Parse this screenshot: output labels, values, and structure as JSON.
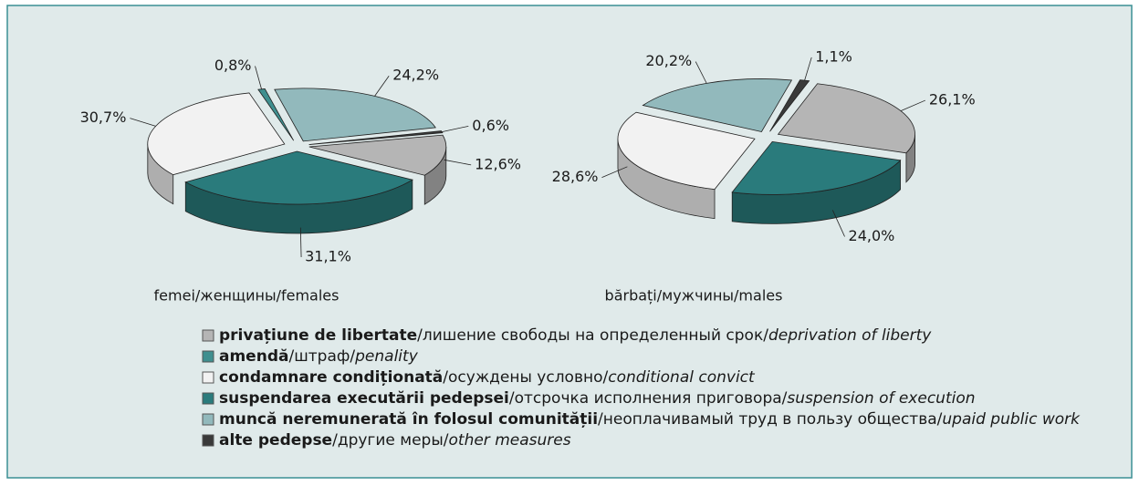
{
  "chart_data": [
    {
      "type": "pie",
      "title": "femei/женщины/females",
      "values": [
        0.8,
        24.2,
        0.6,
        12.6,
        31.1,
        30.7
      ],
      "value_labels": [
        "0,8%",
        "24,2%",
        "0,6%",
        "12,6%",
        "31,1%",
        "30,7%"
      ],
      "colors": [
        "#3f8f8f",
        "#92b9bc",
        "#3a3a3a",
        "#b5b5b5",
        "#2a7b7c",
        "#f2f2f2"
      ]
    },
    {
      "type": "pie",
      "title": "bărbați/мужчины/males",
      "values": [
        20.2,
        1.1,
        26.1,
        24.0,
        28.6
      ],
      "value_labels": [
        "20,2%",
        "1,1%",
        "26,1%",
        "24,0%",
        "28,6%"
      ],
      "colors": [
        "#92b9bc",
        "#3a3a3a",
        "#b5b5b5",
        "#2a7b7c",
        "#f2f2f2"
      ]
    }
  ],
  "legend": [
    {
      "color": "#b5b5b5",
      "ro": "privațiune de libertate",
      "ru": "/лишение свободы на определенный срок/",
      "en": "deprivation of liberty"
    },
    {
      "color": "#3f8f8f",
      "ro": "amendă",
      "ru": "/штраф/",
      "en": "penality"
    },
    {
      "color": "#f2f2f2",
      "ro": "condamnare condiționată",
      "ru": "/осуждены условно/",
      "en": "conditional convict"
    },
    {
      "color": "#2a7b7c",
      "ro": "suspendarea executării pedepsei",
      "ru": "/отсрочка исполнения приговора/",
      "en": "suspension of execution"
    },
    {
      "color": "#92b9bc",
      "ro": "muncă neremunerată în folosul comunității",
      "ru": "/неоплачивамый труд в пользу общества/",
      "en": "upaid public work"
    },
    {
      "color": "#3a3a3a",
      "ro": "alte pedepse",
      "ru": "/другие меры/",
      "en": "other measures"
    }
  ]
}
